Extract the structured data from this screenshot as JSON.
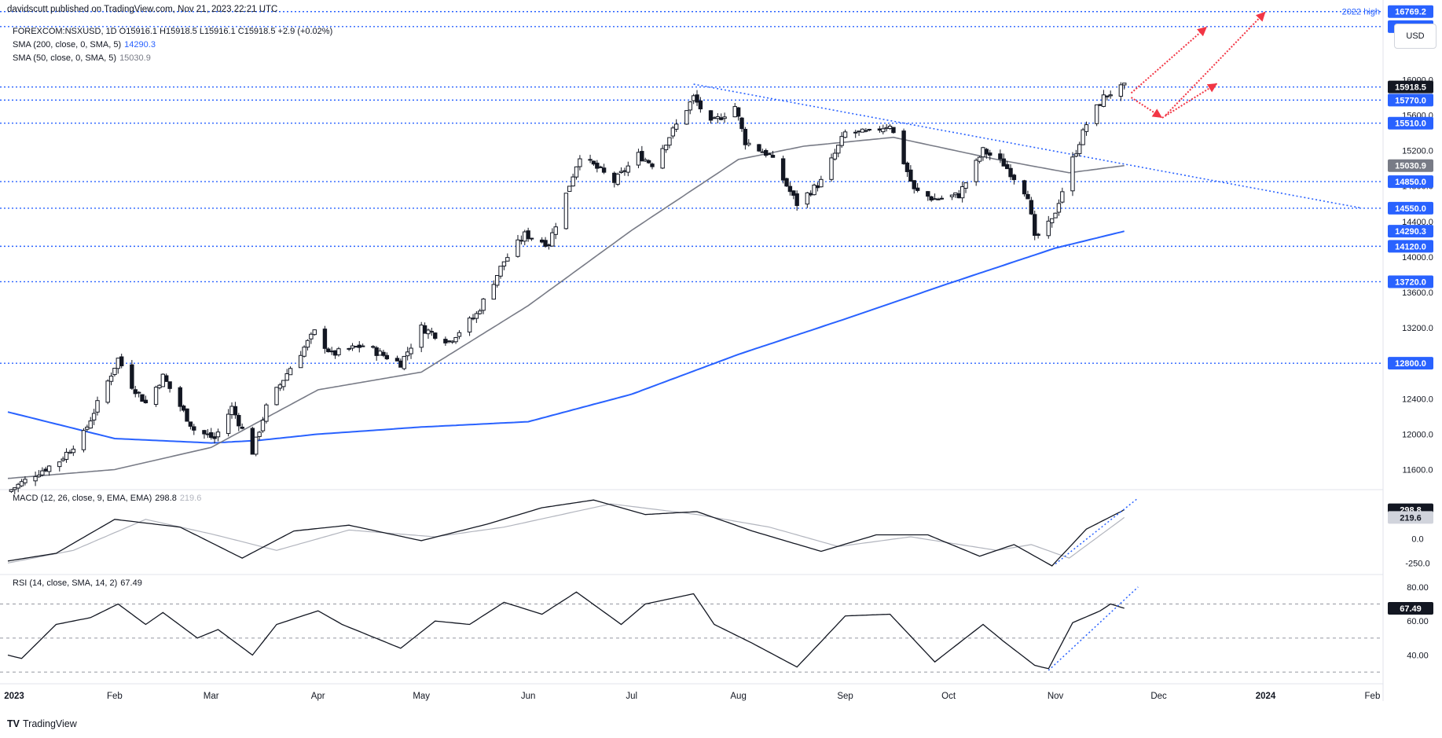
{
  "header": {
    "publisher": "davidscutt published on TradingView.com, Nov 21, 2023 22:21 UTC"
  },
  "legend": {
    "symbol_line": "FOREXCOM:NSXUSD, 1D  O15916.1  H15918.5  L15916.1  C15918.5  +2.9 (+0.02%)",
    "sma200_label": "SMA (200, close, 0, SMA, 5)",
    "sma200_value": "14290.3",
    "sma50_label": "SMA (50, close, 0, SMA, 5)",
    "sma50_value": "15030.9",
    "macd_label": "MACD (12, 26, close, 9, EMA, EMA)",
    "macd_value": "298.8",
    "macd_signal_value": "219.6",
    "rsi_label": "RSI (14, close, SMA, 14, 2)",
    "rsi_value": "67.49"
  },
  "currency_button": "USD",
  "brand": {
    "mark": "TV",
    "name": "TradingView"
  },
  "colors": {
    "candle_up": "#ffffff",
    "candle_down": "#131722",
    "sma200": "#2962ff",
    "sma50": "#787b86",
    "level_line": "#2962ff",
    "trend_line": "#2962ff",
    "arrow": "#f23645",
    "label_bg": "#2962ff",
    "label_text": "#ffffff",
    "price_label_bg": "#131722",
    "grid_separator": "#e0e3eb",
    "macd_line": "#131722",
    "macd_signal": "#b2b5be"
  },
  "chart_data": {
    "type": "candlestick",
    "symbol": "FOREXCOM:NSXUSD",
    "interval": "1D",
    "x_axis": {
      "start": "2023-01-01",
      "end": "2024-02-05",
      "tick_labels": [
        "2023",
        "Feb",
        "Mar",
        "Apr",
        "May",
        "Jun",
        "Jul",
        "Aug",
        "Sep",
        "Oct",
        "Nov",
        "Dec",
        "2024",
        "Feb"
      ],
      "tick_dates": [
        "2023-01-01",
        "2023-02-01",
        "2023-03-01",
        "2023-04-01",
        "2023-05-01",
        "2023-06-01",
        "2023-07-01",
        "2023-08-01",
        "2023-09-01",
        "2023-10-01",
        "2023-11-01",
        "2023-12-01",
        "2024-01-01",
        "2024-02-01"
      ]
    },
    "price_axis": {
      "ylim": [
        11400,
        16900
      ],
      "tick_labels": [
        "11600.0",
        "12000.0",
        "12400.0",
        "12800.0",
        "13200.0",
        "13600.0",
        "14000.0",
        "14400.0",
        "14800.0",
        "15200.0",
        "15600.0",
        "16000.0",
        "16400.0"
      ]
    },
    "ohlc_anchors": [
      {
        "date": "2023-01-01",
        "close": 11350
      },
      {
        "date": "2023-01-09",
        "close": 11550
      },
      {
        "date": "2023-01-16",
        "close": 11700
      },
      {
        "date": "2023-01-23",
        "close": 12000
      },
      {
        "date": "2023-02-02",
        "close": 12850
      },
      {
        "date": "2023-02-06",
        "close": 12550
      },
      {
        "date": "2023-02-10",
        "close": 12350
      },
      {
        "date": "2023-02-15",
        "close": 12650
      },
      {
        "date": "2023-02-24",
        "close": 12050
      },
      {
        "date": "2023-03-02",
        "close": 11950
      },
      {
        "date": "2023-03-07",
        "close": 12300
      },
      {
        "date": "2023-03-13",
        "close": 11800
      },
      {
        "date": "2023-03-17",
        "close": 12300
      },
      {
        "date": "2023-03-24",
        "close": 12750
      },
      {
        "date": "2023-03-31",
        "close": 13150
      },
      {
        "date": "2023-04-05",
        "close": 12900
      },
      {
        "date": "2023-04-14",
        "close": 13000
      },
      {
        "date": "2023-04-25",
        "close": 12800
      },
      {
        "date": "2023-05-01",
        "close": 13200
      },
      {
        "date": "2023-05-09",
        "close": 13050
      },
      {
        "date": "2023-05-17",
        "close": 13350
      },
      {
        "date": "2023-05-25",
        "close": 13950
      },
      {
        "date": "2023-05-31",
        "close": 14250
      },
      {
        "date": "2023-06-07",
        "close": 14150
      },
      {
        "date": "2023-06-16",
        "close": 15150
      },
      {
        "date": "2023-06-26",
        "close": 14850
      },
      {
        "date": "2023-07-03",
        "close": 15150
      },
      {
        "date": "2023-07-07",
        "close": 15050
      },
      {
        "date": "2023-07-19",
        "close": 15800
      },
      {
        "date": "2023-07-24",
        "close": 15500
      },
      {
        "date": "2023-07-31",
        "close": 15700
      },
      {
        "date": "2023-08-03",
        "close": 15300
      },
      {
        "date": "2023-08-10",
        "close": 15150
      },
      {
        "date": "2023-08-18",
        "close": 14600
      },
      {
        "date": "2023-08-25",
        "close": 14850
      },
      {
        "date": "2023-09-01",
        "close": 15400
      },
      {
        "date": "2023-09-08",
        "close": 15400
      },
      {
        "date": "2023-09-14",
        "close": 15500
      },
      {
        "date": "2023-09-21",
        "close": 14750
      },
      {
        "date": "2023-09-27",
        "close": 14650
      },
      {
        "date": "2023-10-04",
        "close": 14700
      },
      {
        "date": "2023-10-11",
        "close": 15200
      },
      {
        "date": "2023-10-17",
        "close": 15050
      },
      {
        "date": "2023-10-24",
        "close": 14700
      },
      {
        "date": "2023-10-26",
        "close": 14200
      },
      {
        "date": "2023-10-31",
        "close": 14400
      },
      {
        "date": "2023-11-06",
        "close": 15100
      },
      {
        "date": "2023-11-10",
        "close": 15500
      },
      {
        "date": "2023-11-15",
        "close": 15800
      },
      {
        "date": "2023-11-17",
        "close": 15850
      },
      {
        "date": "2023-11-21",
        "close": 15918.5
      }
    ],
    "sma200_anchors": [
      {
        "date": "2023-01-01",
        "value": 12250
      },
      {
        "date": "2023-02-01",
        "value": 11950
      },
      {
        "date": "2023-03-01",
        "value": 11900
      },
      {
        "date": "2023-03-15",
        "value": 11930
      },
      {
        "date": "2023-04-01",
        "value": 12000
      },
      {
        "date": "2023-05-01",
        "value": 12080
      },
      {
        "date": "2023-06-01",
        "value": 12140
      },
      {
        "date": "2023-07-01",
        "value": 12450
      },
      {
        "date": "2023-08-01",
        "value": 12900
      },
      {
        "date": "2023-09-01",
        "value": 13300
      },
      {
        "date": "2023-10-01",
        "value": 13700
      },
      {
        "date": "2023-11-01",
        "value": 14100
      },
      {
        "date": "2023-11-21",
        "value": 14290.3
      }
    ],
    "sma50_anchors": [
      {
        "date": "2023-01-01",
        "value": 11500
      },
      {
        "date": "2023-02-01",
        "value": 11600
      },
      {
        "date": "2023-03-01",
        "value": 11850
      },
      {
        "date": "2023-04-01",
        "value": 12500
      },
      {
        "date": "2023-05-01",
        "value": 12700
      },
      {
        "date": "2023-06-01",
        "value": 13450
      },
      {
        "date": "2023-07-01",
        "value": 14300
      },
      {
        "date": "2023-08-01",
        "value": 15100
      },
      {
        "date": "2023-08-20",
        "value": 15250
      },
      {
        "date": "2023-09-15",
        "value": 15350
      },
      {
        "date": "2023-10-15",
        "value": 15100
      },
      {
        "date": "2023-11-05",
        "value": 14950
      },
      {
        "date": "2023-11-21",
        "value": 15030.9
      }
    ],
    "horizontal_levels": [
      {
        "price": 16769.2,
        "label": "16769.2",
        "note": "2022 high"
      },
      {
        "price": 16600.0,
        "label": "16600.0"
      },
      {
        "price": 15918.5,
        "label": "15918.5",
        "current": true
      },
      {
        "price": 15770.0,
        "label": "15770.0"
      },
      {
        "price": 15510.0,
        "label": "15510.0"
      },
      {
        "price": 14850.0,
        "label": "14850.0"
      },
      {
        "price": 14550.0,
        "label": "14550.0"
      },
      {
        "price": 14120.0,
        "label": "14120.0"
      },
      {
        "price": 13720.0,
        "label": "13720.0"
      },
      {
        "price": 12800.0,
        "label": "12800.0"
      }
    ],
    "indicator_price_labels": [
      {
        "price": 15030.9,
        "label": "15030.9",
        "series": "SMA 50"
      },
      {
        "price": 14290.3,
        "label": "14290.3",
        "series": "SMA 200"
      }
    ],
    "trendline": {
      "from": {
        "date": "2023-07-19",
        "price": 15950
      },
      "to": {
        "date": "2024-01-29",
        "price": 14550
      }
    },
    "projection_arrows": [
      {
        "from": {
          "date": "2023-11-23",
          "price": 15800
        },
        "to": {
          "date": "2023-12-02",
          "price": 15570
        }
      },
      {
        "from": {
          "date": "2023-11-23",
          "price": 15850
        },
        "to": {
          "date": "2023-12-15",
          "price": 16600
        }
      },
      {
        "from": {
          "date": "2023-12-02",
          "price": 15570
        },
        "to": {
          "date": "2023-12-18",
          "price": 15960
        }
      },
      {
        "from": {
          "date": "2023-12-03",
          "price": 15600
        },
        "to": {
          "date": "2024-01-01",
          "price": 16769
        }
      }
    ],
    "macd": {
      "ylim": [
        -280,
        450
      ],
      "tick_labels": [
        "0.0",
        "-250.0"
      ],
      "tick_values": [
        0,
        -250
      ],
      "macd_anchors": [
        {
          "date": "2023-01-01",
          "value": -230
        },
        {
          "date": "2023-01-15",
          "value": -150
        },
        {
          "date": "2023-02-01",
          "value": 200
        },
        {
          "date": "2023-02-20",
          "value": 120
        },
        {
          "date": "2023-03-10",
          "value": -200
        },
        {
          "date": "2023-03-25",
          "value": 80
        },
        {
          "date": "2023-04-10",
          "value": 140
        },
        {
          "date": "2023-05-01",
          "value": -20
        },
        {
          "date": "2023-05-20",
          "value": 150
        },
        {
          "date": "2023-06-05",
          "value": 320
        },
        {
          "date": "2023-06-20",
          "value": 400
        },
        {
          "date": "2023-07-05",
          "value": 250
        },
        {
          "date": "2023-07-20",
          "value": 280
        },
        {
          "date": "2023-08-05",
          "value": 80
        },
        {
          "date": "2023-08-25",
          "value": -130
        },
        {
          "date": "2023-09-10",
          "value": 40
        },
        {
          "date": "2023-09-25",
          "value": 40
        },
        {
          "date": "2023-10-10",
          "value": -180
        },
        {
          "date": "2023-10-20",
          "value": -60
        },
        {
          "date": "2023-10-31",
          "value": -280
        },
        {
          "date": "2023-11-10",
          "value": 100
        },
        {
          "date": "2023-11-21",
          "value": 298.8
        }
      ],
      "signal_anchors": [
        {
          "date": "2023-01-01",
          "value": -250
        },
        {
          "date": "2023-01-20",
          "value": -120
        },
        {
          "date": "2023-02-10",
          "value": 200
        },
        {
          "date": "2023-03-01",
          "value": 50
        },
        {
          "date": "2023-03-20",
          "value": -120
        },
        {
          "date": "2023-04-10",
          "value": 90
        },
        {
          "date": "2023-05-05",
          "value": 20
        },
        {
          "date": "2023-05-25",
          "value": 120
        },
        {
          "date": "2023-06-25",
          "value": 360
        },
        {
          "date": "2023-07-20",
          "value": 250
        },
        {
          "date": "2023-08-10",
          "value": 120
        },
        {
          "date": "2023-08-30",
          "value": -80
        },
        {
          "date": "2023-09-20",
          "value": 20
        },
        {
          "date": "2023-10-15",
          "value": -120
        },
        {
          "date": "2023-10-25",
          "value": -60
        },
        {
          "date": "2023-11-05",
          "value": -200
        },
        {
          "date": "2023-11-21",
          "value": 219.6
        }
      ],
      "trendline": {
        "from": {
          "date": "2023-11-01",
          "value": -260
        },
        "to": {
          "date": "2023-11-25",
          "value": 420
        }
      }
    },
    "rsi": {
      "ylim": [
        25,
        85
      ],
      "tick_labels": [
        "80.00",
        "60.00",
        "40.00"
      ],
      "tick_values": [
        80,
        60,
        40
      ],
      "bands": [
        70,
        50,
        30
      ],
      "rsi_anchors": [
        {
          "date": "2023-01-01",
          "value": 40
        },
        {
          "date": "2023-01-05",
          "value": 38
        },
        {
          "date": "2023-01-15",
          "value": 58
        },
        {
          "date": "2023-01-25",
          "value": 62
        },
        {
          "date": "2023-02-02",
          "value": 70
        },
        {
          "date": "2023-02-10",
          "value": 58
        },
        {
          "date": "2023-02-15",
          "value": 65
        },
        {
          "date": "2023-02-25",
          "value": 50
        },
        {
          "date": "2023-03-03",
          "value": 55
        },
        {
          "date": "2023-03-13",
          "value": 40
        },
        {
          "date": "2023-03-20",
          "value": 58
        },
        {
          "date": "2023-04-01",
          "value": 66
        },
        {
          "date": "2023-04-08",
          "value": 58
        },
        {
          "date": "2023-04-25",
          "value": 44
        },
        {
          "date": "2023-05-05",
          "value": 60
        },
        {
          "date": "2023-05-15",
          "value": 58
        },
        {
          "date": "2023-05-25",
          "value": 71
        },
        {
          "date": "2023-06-05",
          "value": 64
        },
        {
          "date": "2023-06-15",
          "value": 77
        },
        {
          "date": "2023-06-28",
          "value": 58
        },
        {
          "date": "2023-07-05",
          "value": 70
        },
        {
          "date": "2023-07-19",
          "value": 76
        },
        {
          "date": "2023-07-25",
          "value": 58
        },
        {
          "date": "2023-08-05",
          "value": 47
        },
        {
          "date": "2023-08-18",
          "value": 33
        },
        {
          "date": "2023-08-26",
          "value": 50
        },
        {
          "date": "2023-09-01",
          "value": 63
        },
        {
          "date": "2023-09-14",
          "value": 64
        },
        {
          "date": "2023-09-27",
          "value": 36
        },
        {
          "date": "2023-10-11",
          "value": 58
        },
        {
          "date": "2023-10-17",
          "value": 48
        },
        {
          "date": "2023-10-26",
          "value": 34
        },
        {
          "date": "2023-10-30",
          "value": 32
        },
        {
          "date": "2023-11-06",
          "value": 59
        },
        {
          "date": "2023-11-14",
          "value": 66
        },
        {
          "date": "2023-11-17",
          "value": 70
        },
        {
          "date": "2023-11-21",
          "value": 67.49
        }
      ],
      "trendline": {
        "from": {
          "date": "2023-10-30",
          "value": 31
        },
        "to": {
          "date": "2023-11-25",
          "value": 80
        }
      }
    }
  }
}
